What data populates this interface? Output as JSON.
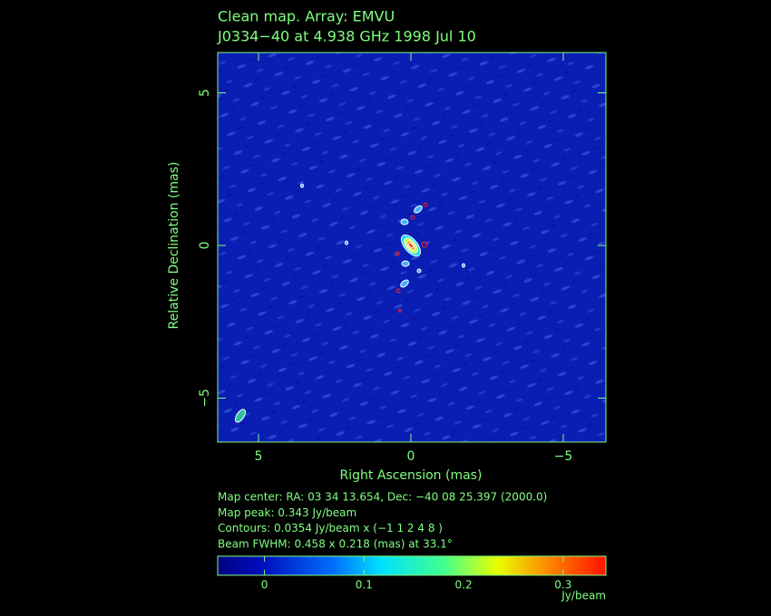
{
  "chart_data": {
    "type": "image",
    "title": "Clean map.  Array: EMVU",
    "subtitle": "J0334−40 at 4.938 GHz 1998 Jul 10",
    "x_label": "Right Ascension  (mas)",
    "y_label": "Relative Declination  (mas)",
    "xlim": [
      6.34,
      -6.4
    ],
    "ylim": [
      -6.44,
      6.32
    ],
    "xticks": [
      5,
      0,
      {
        "value": -5,
        "label": "−5"
      }
    ],
    "yticks": [
      {
        "value": -5,
        "label": "−5"
      },
      0,
      5
    ],
    "notes": [
      "Map center:  RA: 03 34 13.654,  Dec: −40 08 25.397 (2000.0)",
      "Map peak: 0.343 Jy/beam",
      "Contours: 0.0354 Jy/beam x (−1 1 2 4 8 )",
      "Beam FWHM: 0.458 x 0.218 (mas) at 33.1°"
    ],
    "colorbar": {
      "label": "Jy/beam",
      "lim": [
        -0.047,
        0.343
      ],
      "ticks": [
        0,
        0.1,
        0.2,
        0.3
      ]
    }
  }
}
